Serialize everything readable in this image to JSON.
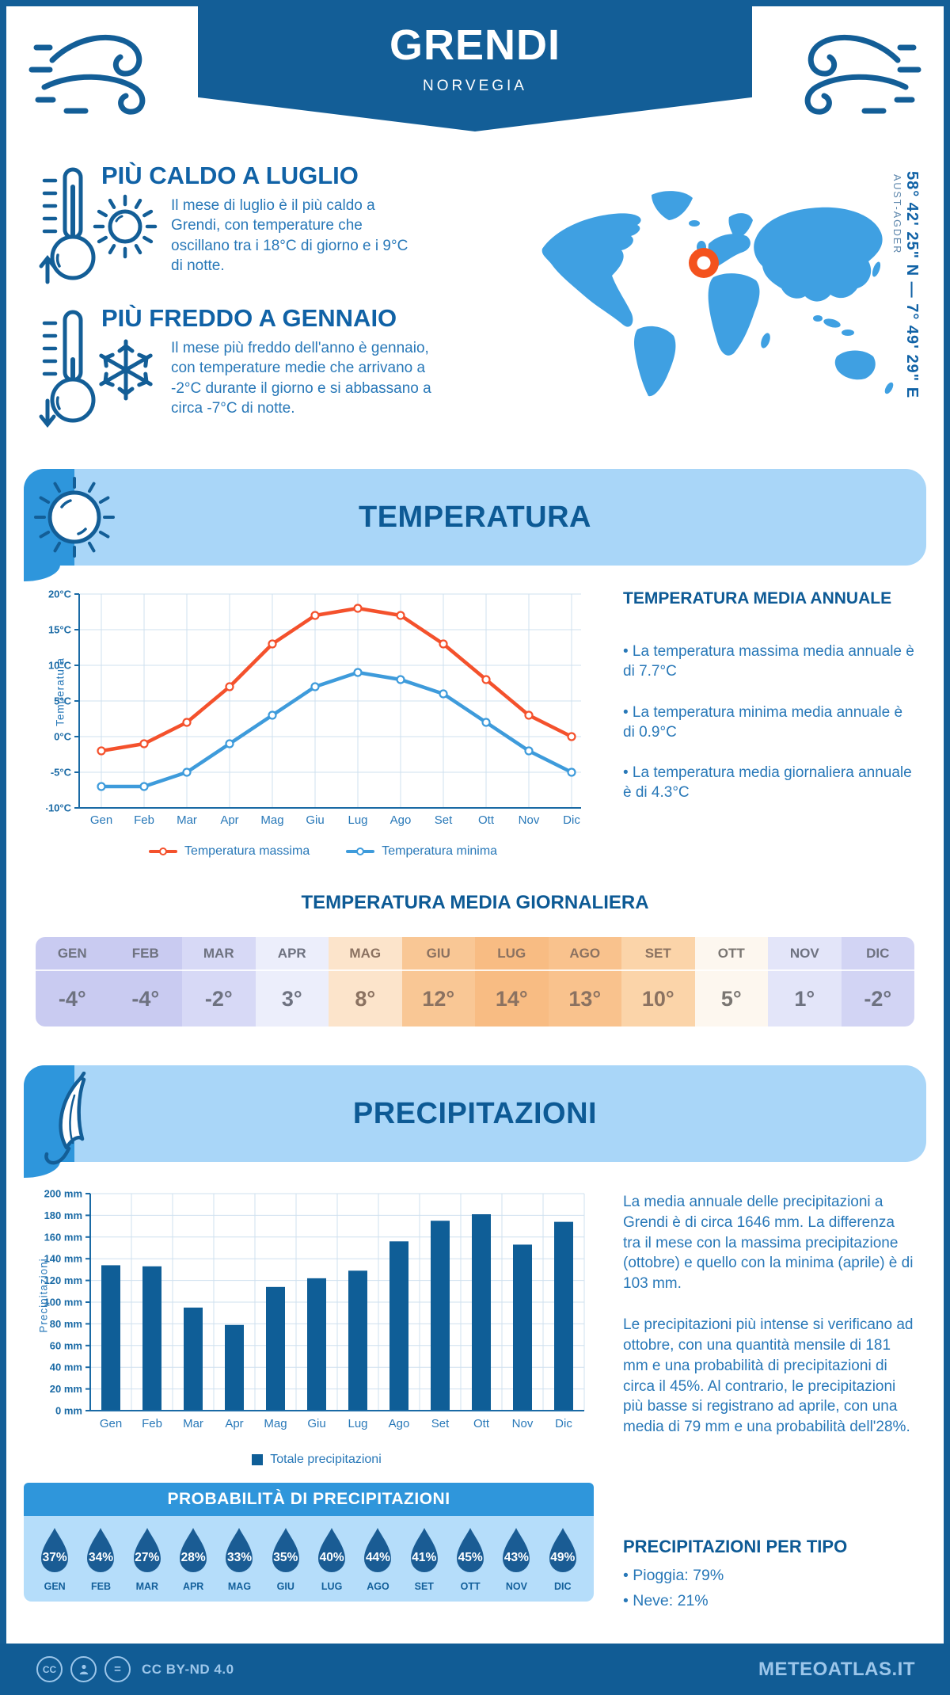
{
  "header": {
    "title": "GRENDI",
    "subtitle": "NORVEGIA"
  },
  "location": {
    "coordinates": "58° 42' 25\" N — 7° 49' 29\" E",
    "region": "AUST-AGDER"
  },
  "highlights": {
    "hot": {
      "title": "PIÙ CALDO A LUGLIO",
      "text": "Il mese di luglio è il più caldo a Grendi, con temperature che oscillano tra i 18°C di giorno e i 9°C di notte."
    },
    "cold": {
      "title": "PIÙ FREDDO A GENNAIO",
      "text": "Il mese più freddo dell'anno è gennaio, con temperature medie che arrivano a -2°C durante il giorno e si abbassano a circa -7°C di notte."
    }
  },
  "temperature_section": {
    "banner": "TEMPERATURA",
    "annual": {
      "title": "TEMPERATURA MEDIA ANNUALE",
      "bullets": [
        "• La temperatura massima media annuale è di 7.7°C",
        "• La temperatura minima media annuale è di 0.9°C",
        "• La temperatura media giornaliera annuale è di 4.3°C"
      ]
    },
    "daily_table": {
      "title": "TEMPERATURA MEDIA GIORNALIERA",
      "months": [
        "GEN",
        "FEB",
        "MAR",
        "APR",
        "MAG",
        "GIU",
        "LUG",
        "AGO",
        "SET",
        "OTT",
        "NOV",
        "DIC"
      ],
      "values": [
        "-4°",
        "-4°",
        "-2°",
        "3°",
        "8°",
        "12°",
        "14°",
        "13°",
        "10°",
        "5°",
        "1°",
        "-2°"
      ],
      "cell_colors": [
        "#C9CBF1",
        "#C9CBF1",
        "#D7D9F6",
        "#ECEEFB",
        "#FCE4CB",
        "#F9C795",
        "#F8BC83",
        "#F9C28D",
        "#FBD4A9",
        "#FDF7EF",
        "#E3E5F9",
        "#D2D4F4"
      ],
      "text_colors": [
        "#6E7280",
        "#6E7280",
        "#6E7280",
        "#6E7280",
        "#8B7261",
        "#8B7261",
        "#8B7261",
        "#8B7261",
        "#8B7261",
        "#7A7672",
        "#6E7280",
        "#6E7280"
      ]
    }
  },
  "precipitation_section": {
    "banner": "PRECIPITAZIONI",
    "paragraphs": [
      "La media annuale delle precipitazioni a Grendi è di circa 1646 mm. La differenza tra il mese con la massima precipitazione (ottobre) e quello con la minima (aprile) è di 103 mm.",
      "Le precipitazioni più intense si verificano ad ottobre, con una quantità mensile di 181 mm e una probabilità di precipitazioni di circa il 45%. Al contrario, le precipitazioni più basse si registrano ad aprile, con una media di 79 mm e una probabilità dell'28%."
    ],
    "probability": {
      "title": "PROBABILITÀ DI PRECIPITAZIONI",
      "months": [
        "GEN",
        "FEB",
        "MAR",
        "APR",
        "MAG",
        "GIU",
        "LUG",
        "AGO",
        "SET",
        "OTT",
        "NOV",
        "DIC"
      ],
      "values": [
        "37%",
        "34%",
        "27%",
        "28%",
        "33%",
        "35%",
        "40%",
        "44%",
        "41%",
        "45%",
        "43%",
        "49%"
      ],
      "drop_color": "#1A5C94"
    },
    "types": {
      "title": "PRECIPITAZIONI PER TIPO",
      "items": [
        "• Pioggia: 79%",
        "• Neve: 21%"
      ]
    }
  },
  "chart_data": [
    {
      "type": "line",
      "title": "Temperatura",
      "categories": [
        "Gen",
        "Feb",
        "Mar",
        "Apr",
        "Mag",
        "Giu",
        "Lug",
        "Ago",
        "Set",
        "Ott",
        "Nov",
        "Dic"
      ],
      "series": [
        {
          "name": "Temperatura massima",
          "color": "#F4512C",
          "values": [
            -2,
            -1,
            2,
            7,
            13,
            17,
            18,
            17,
            13,
            8,
            3,
            0
          ]
        },
        {
          "name": "Temperatura minima",
          "color": "#3E9BDB",
          "values": [
            -7,
            -7,
            -5,
            -1,
            3,
            7,
            9,
            8,
            6,
            2,
            -2,
            -5
          ]
        }
      ],
      "ylabel": "Temperatura",
      "ylim": [
        -10,
        20
      ],
      "yticks": [
        "20°C",
        "15°C",
        "10°C",
        "5°C",
        "0°C",
        "-5°C",
        "-10°C"
      ],
      "grid": true,
      "legend_position": "bottom"
    },
    {
      "type": "bar",
      "title": "Precipitazioni",
      "categories": [
        "Gen",
        "Feb",
        "Mar",
        "Apr",
        "Mag",
        "Giu",
        "Lug",
        "Ago",
        "Set",
        "Ott",
        "Nov",
        "Dic"
      ],
      "values": [
        134,
        133,
        95,
        79,
        114,
        122,
        129,
        156,
        175,
        181,
        153,
        174
      ],
      "series_name": "Totale precipitazioni",
      "bar_color": "#0F5E97",
      "ylabel": "Precipitazioni",
      "ylim": [
        0,
        200
      ],
      "yticks": [
        "0 mm",
        "20 mm",
        "40 mm",
        "60 mm",
        "80 mm",
        "100 mm",
        "120 mm",
        "140 mm",
        "160 mm",
        "180 mm",
        "200 mm"
      ],
      "grid": true,
      "legend_position": "bottom"
    }
  ],
  "colors": {
    "primary": "#135E97",
    "banner_light": "#A9D6F8",
    "banner_mid": "#2E96DC",
    "map_blue": "#3FA0E2",
    "marker_orange": "#F4521D",
    "grid": "#CFE0EF",
    "axis": "#1A6AA5"
  },
  "footer": {
    "license": "CC BY-ND 4.0",
    "site": "METEOATLAS.IT"
  }
}
